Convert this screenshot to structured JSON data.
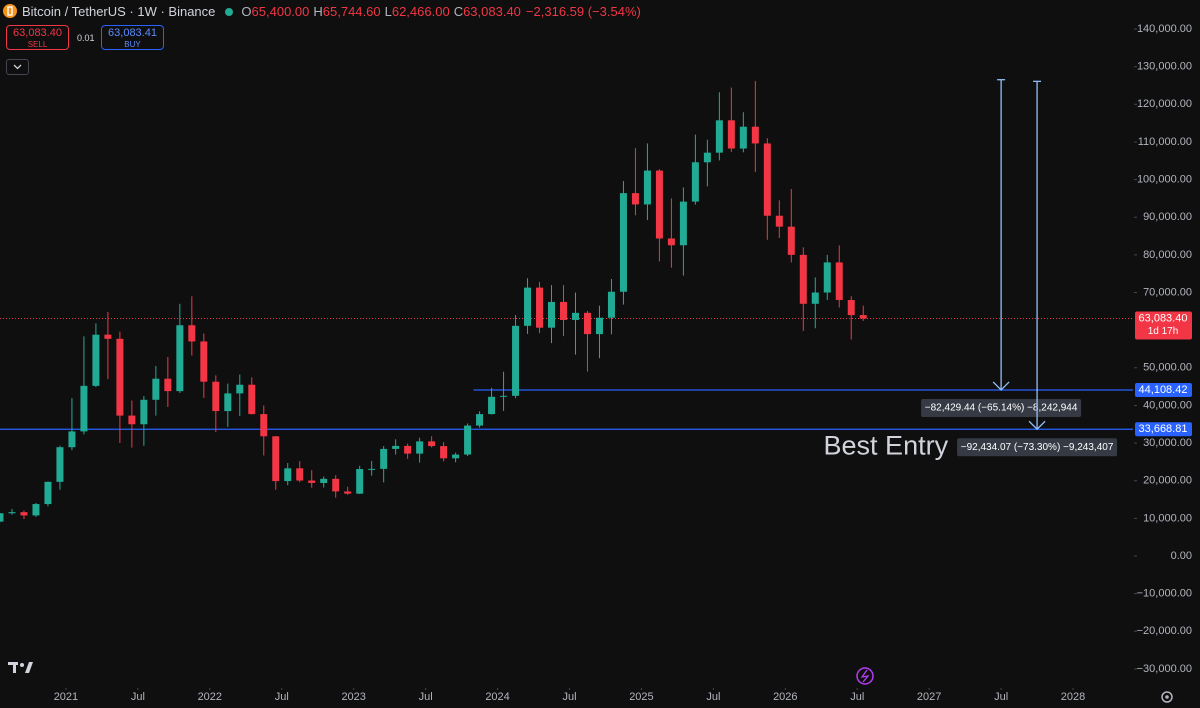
{
  "header": {
    "symbol": "Bitcoin / TetherUS · 1W · Binance",
    "ohlc": [
      {
        "label": "O",
        "value": "65,400.00"
      },
      {
        "label": "H",
        "value": "65,744.60"
      },
      {
        "label": "L",
        "value": "62,466.00"
      },
      {
        "label": "C",
        "value": "63,083.40"
      }
    ],
    "change": "−2,316.59 (−3.54%)"
  },
  "trade": {
    "sell_price": "63,083.40",
    "sell": "SELL",
    "size": "0.01",
    "buy_price": "63,083.41",
    "buy": "BUY"
  },
  "chart_data": {
    "type": "candlestick",
    "up_color": "#22ab94",
    "down_color": "#f23645",
    "x": [
      "2020-07",
      "2020-08",
      "2020-09",
      "2020-10",
      "2020-11",
      "2020-12",
      "2021-01",
      "2021-02",
      "2021-03",
      "2021-04",
      "2021-05",
      "2021-06",
      "2021-07",
      "2021-08",
      "2021-09",
      "2021-10",
      "2021-11",
      "2021-12",
      "2022-01",
      "2022-02",
      "2022-03",
      "2022-04",
      "2022-05",
      "2022-06",
      "2022-07",
      "2022-08",
      "2022-09",
      "2022-10",
      "2022-11",
      "2022-12",
      "2023-01",
      "2023-02",
      "2023-03",
      "2023-04",
      "2023-05",
      "2023-06",
      "2023-07",
      "2023-08",
      "2023-09",
      "2023-10",
      "2023-11",
      "2023-12",
      "2024-01",
      "2024-02",
      "2024-03",
      "2024-04",
      "2024-05",
      "2024-06",
      "2024-07",
      "2024-08",
      "2024-09",
      "2024-10",
      "2024-11",
      "2024-12",
      "2025-01",
      "2025-02",
      "2025-03",
      "2025-04",
      "2025-05",
      "2025-06",
      "2025-07",
      "2025-08",
      "2025-09",
      "2025-10",
      "2025-11",
      "2025-12",
      "2026-01",
      "2026-02",
      "2026-03",
      "2026-04",
      "2026-05",
      "2026-06",
      "2026-07"
    ],
    "open": [
      9140,
      11350,
      11650,
      10780,
      13800,
      19700,
      28900,
      33100,
      45200,
      58800,
      57700,
      37300,
      35000,
      41500,
      47100,
      43800,
      61300,
      57000,
      46300,
      38500,
      43200,
      45500,
      37700,
      31800,
      19900,
      23300,
      20050,
      19400,
      20500,
      17150,
      16550,
      23100,
      23150,
      28450,
      29250,
      27200,
      30450,
      29200,
      25950,
      26950,
      34650,
      37700,
      42300,
      42550,
      61150,
      71300,
      60650,
      67500,
      62700,
      64600,
      58950,
      63300,
      70200,
      96400,
      93400,
      102400,
      84350,
      82550,
      94150,
      104600,
      107150,
      115750,
      108250,
      114050,
      109600,
      90400,
      87500,
      80000,
      67000,
      70000,
      78000,
      68000,
      64000
    ],
    "high": [
      11450,
      12480,
      12070,
      14100,
      19800,
      29300,
      41950,
      58350,
      61800,
      64850,
      59600,
      41300,
      42500,
      50500,
      52900,
      67000,
      69000,
      59100,
      47990,
      45800,
      48200,
      47450,
      40000,
      31900,
      24700,
      25200,
      22800,
      21100,
      21450,
      18400,
      23950,
      25250,
      29200,
      31000,
      29850,
      31400,
      31800,
      30250,
      27450,
      35200,
      38450,
      44700,
      48950,
      64000,
      73800,
      72800,
      71950,
      71950,
      70000,
      65100,
      66500,
      73600,
      99600,
      108350,
      109600,
      102750,
      95000,
      97900,
      111950,
      110600,
      123200,
      124450,
      117900,
      126200,
      111000,
      94500,
      97500,
      82000,
      74000,
      80000,
      82500,
      69000,
      66500
    ],
    "low": [
      8970,
      10980,
      9820,
      10370,
      13200,
      17600,
      28100,
      32300,
      44900,
      47000,
      30000,
      28800,
      29300,
      37300,
      39600,
      43300,
      53250,
      42000,
      32900,
      34300,
      37200,
      37600,
      26700,
      17600,
      18800,
      19600,
      18150,
      18200,
      15500,
      16250,
      16500,
      21350,
      19550,
      26950,
      25800,
      24800,
      28850,
      25150,
      24900,
      26550,
      34100,
      37600,
      38550,
      41900,
      59000,
      59200,
      56550,
      58400,
      53500,
      49000,
      52550,
      58900,
      66800,
      90500,
      89250,
      78250,
      76600,
      74500,
      93350,
      98200,
      105100,
      107350,
      107250,
      102000,
      84000,
      84500,
      78000,
      59800,
      60500,
      68000,
      66000,
      57500,
      62466
    ],
    "close": [
      11350,
      11650,
      10780,
      13800,
      19700,
      28900,
      33100,
      45200,
      58800,
      57700,
      37300,
      35000,
      41500,
      47100,
      43800,
      61300,
      57000,
      46300,
      38500,
      43200,
      45500,
      37700,
      31800,
      19900,
      23300,
      20050,
      19400,
      20500,
      17150,
      16550,
      23100,
      23150,
      28450,
      29250,
      27200,
      30450,
      29200,
      25950,
      26950,
      34650,
      37700,
      42300,
      42550,
      61150,
      71300,
      60650,
      67500,
      62700,
      64600,
      58950,
      63300,
      70200,
      96400,
      93400,
      102400,
      84350,
      82550,
      94150,
      104600,
      107150,
      115750,
      108250,
      114050,
      109600,
      90400,
      87500,
      80000,
      67000,
      70000,
      78000,
      68000,
      64000,
      63083.4
    ],
    "xlim": [
      "2020-07",
      "2028-06"
    ],
    "xticks": [
      {
        "value": "2021-01",
        "label": "2021"
      },
      {
        "value": "2021-07",
        "label": "Jul"
      },
      {
        "value": "2022-01",
        "label": "2022"
      },
      {
        "value": "2022-07",
        "label": "Jul"
      },
      {
        "value": "2023-01",
        "label": "2023"
      },
      {
        "value": "2023-07",
        "label": "Jul"
      },
      {
        "value": "2024-01",
        "label": "2024"
      },
      {
        "value": "2024-07",
        "label": "Jul"
      },
      {
        "value": "2025-01",
        "label": "2025"
      },
      {
        "value": "2025-07",
        "label": "Jul"
      },
      {
        "value": "2026-01",
        "label": "2026"
      },
      {
        "value": "2026-07",
        "label": "Jul"
      },
      {
        "value": "2027-01",
        "label": "2027"
      },
      {
        "value": "2027-07",
        "label": "Jul"
      },
      {
        "value": "2028-01",
        "label": "2028"
      }
    ],
    "ylim": [
      -35070,
      147710
    ],
    "yticks": [
      {
        "value": 140000,
        "label": "140,000.00"
      },
      {
        "value": 130000,
        "label": "130,000.00"
      },
      {
        "value": 120000,
        "label": "120,000.00"
      },
      {
        "value": 110000,
        "label": "110,000.00"
      },
      {
        "value": 100000,
        "label": "100,000.00"
      },
      {
        "value": 90000,
        "label": "90,000.00"
      },
      {
        "value": 80000,
        "label": "80,000.00"
      },
      {
        "value": 70000,
        "label": "70,000.00"
      },
      {
        "value": 50000,
        "label": "50,000.00"
      },
      {
        "value": 40000,
        "label": "40,000.00"
      },
      {
        "value": 30000,
        "label": "30,000.00"
      },
      {
        "value": 20000,
        "label": "20,000.00"
      },
      {
        "value": 10000,
        "label": "10,000.00"
      },
      {
        "value": 0,
        "label": "0.00"
      },
      {
        "value": -10000,
        "label": "−10,000.00"
      },
      {
        "value": -20000,
        "label": "−20,000.00"
      },
      {
        "value": -30000,
        "label": "−30,000.00"
      }
    ],
    "price_lines": [
      {
        "value": 63083.4,
        "label": "63,083.40",
        "sub": "1d 17h",
        "color": "#f23645",
        "style": "dotted"
      },
      {
        "value": 44108.42,
        "label": "44,108.42",
        "color": "#2962ff",
        "style": "solid",
        "from": "2023-11"
      },
      {
        "value": 33668.81,
        "label": "33,668.81",
        "color": "#2962ff",
        "style": "solid"
      }
    ],
    "measures": [
      {
        "x": "2027-07",
        "from": 126537.86,
        "to": 44108.42,
        "label": "−82,429.44 (−65.14%) −8,242,944"
      },
      {
        "x": "2027-10",
        "from": 126102.88,
        "to": 33668.81,
        "label": "−92,434.07 (−73.30%) −9,243,407"
      }
    ],
    "annotation": "Best Entry"
  }
}
